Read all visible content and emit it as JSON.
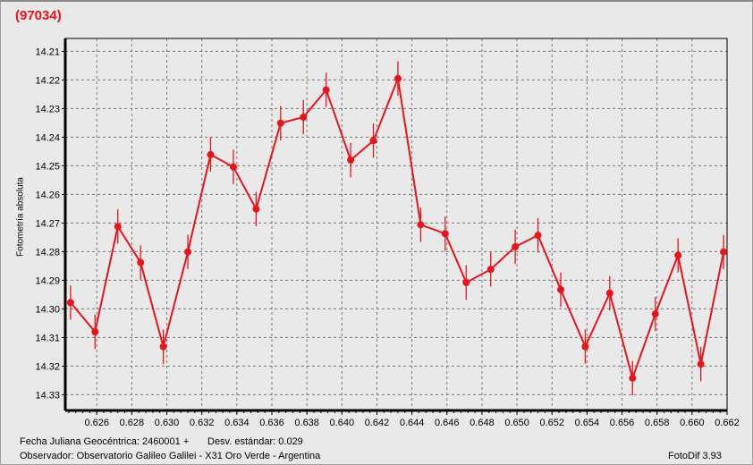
{
  "title": "(97034)",
  "footer": {
    "jd": "Fecha Juliana Geocéntrica: 2460001 +",
    "std": "Desv. estándar: 0.029",
    "observer": "Observador: Observatorio Galileo Galilei - X31 Oro Verde - Argentina",
    "software": "FotoDif 3.93"
  },
  "chart_data": {
    "type": "line",
    "title": "(97034)",
    "xlabel": "",
    "ylabel": "Fotometría absoluta",
    "xlim": [
      0.6242,
      0.662
    ],
    "ylim": [
      14.2055,
      14.3355
    ],
    "y_inverted": true,
    "grid": true,
    "color": "#e8141c",
    "xticks": [
      "0.626",
      "0.628",
      "0.630",
      "0.632",
      "0.634",
      "0.636",
      "0.638",
      "0.640",
      "0.642",
      "0.644",
      "0.646",
      "0.648",
      "0.650",
      "0.652",
      "0.654",
      "0.656",
      "0.658",
      "0.660",
      "0.662"
    ],
    "yticks": [
      "14.21",
      "14.22",
      "14.23",
      "14.24",
      "14.25",
      "14.26",
      "14.27",
      "14.28",
      "14.29",
      "14.30",
      "14.31",
      "14.32",
      "14.33"
    ],
    "x": [
      0.6245,
      0.6259,
      0.6272,
      0.6285,
      0.6298,
      0.6312,
      0.6325,
      0.6338,
      0.6351,
      0.6365,
      0.6378,
      0.6391,
      0.6405,
      0.6418,
      0.6432,
      0.6445,
      0.6459,
      0.6471,
      0.6485,
      0.6499,
      0.6512,
      0.6525,
      0.6539,
      0.6553,
      0.6566,
      0.6579,
      0.6592,
      0.6605,
      0.6618
    ],
    "y": [
      14.2978,
      14.308,
      14.2712,
      14.2838,
      14.3132,
      14.2801,
      14.2461,
      14.2504,
      14.2651,
      14.2351,
      14.233,
      14.2235,
      14.248,
      14.2412,
      14.2195,
      14.2706,
      14.2737,
      14.2908,
      14.2862,
      14.2783,
      14.2743,
      14.2933,
      14.3132,
      14.2945,
      14.3242,
      14.3018,
      14.2813,
      14.3193,
      14.2801
    ],
    "error": 0.006
  }
}
